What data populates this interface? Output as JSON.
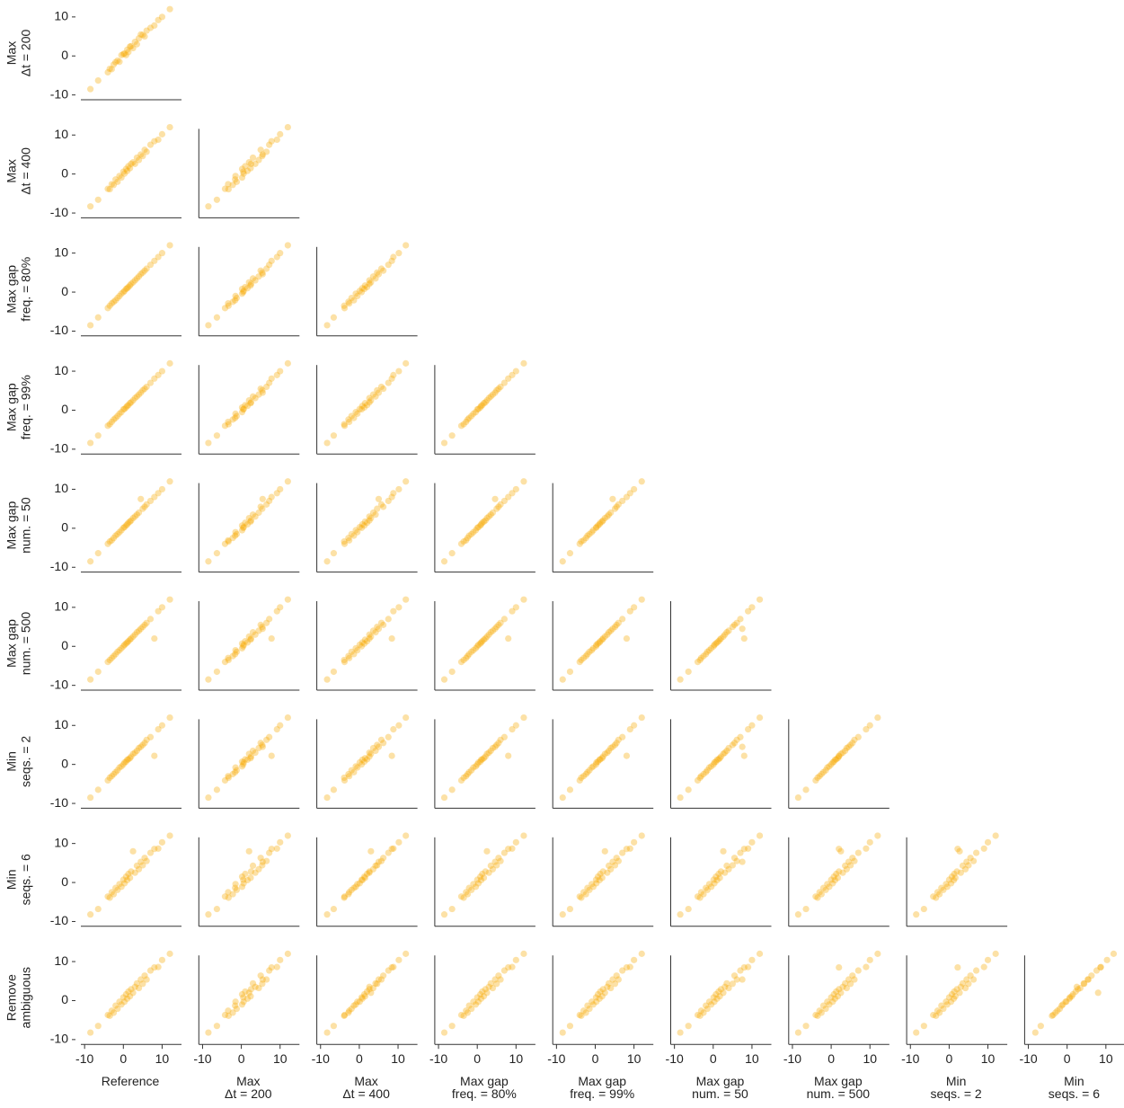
{
  "chart_data": {
    "type": "scatter-matrix",
    "xlim": [
      -10.5,
      15
    ],
    "ylim": [
      -11,
      12.5
    ],
    "xticks": [
      -10,
      0,
      10
    ],
    "yticks": [
      -10,
      0,
      10
    ],
    "color": "#f5a800",
    "variables": [
      {
        "name": [
          "Reference"
        ],
        "values": [
          -8.5,
          -6.5,
          -4,
          -3.5,
          -3,
          -2.5,
          -2,
          -1.5,
          -1,
          -0.5,
          0,
          0.3,
          0.7,
          1,
          1.3,
          1.7,
          2,
          2.5,
          3,
          3.5,
          4,
          4.5,
          5,
          5.5,
          6,
          7,
          8,
          9,
          10,
          12
        ]
      },
      {
        "name": [
          "Max",
          "Δt = 200"
        ],
        "values": [
          -8.5,
          -6.3,
          -4.2,
          -3.3,
          -3.4,
          -2.2,
          -1.6,
          -1.2,
          -1.5,
          0.2,
          0.5,
          0.6,
          0.2,
          1.6,
          1.0,
          2.4,
          2.5,
          2.0,
          3.6,
          3.0,
          4.5,
          5.5,
          5.4,
          5.0,
          6.5,
          7.2,
          7.8,
          9.2,
          10,
          12
        ]
      },
      {
        "name": [
          "Max",
          "Δt = 400"
        ],
        "values": [
          -8.3,
          -6.6,
          -3.8,
          -3.9,
          -2.6,
          -2.8,
          -1.4,
          -2.0,
          -0.5,
          -0.9,
          0.6,
          0.1,
          1.3,
          0.8,
          2.0,
          1.5,
          2.6,
          3.0,
          2.6,
          4.2,
          3.6,
          5.0,
          4.6,
          6.2,
          5.7,
          7.5,
          8.4,
          8.8,
          10.2,
          12
        ]
      },
      {
        "name": [
          "Max gap",
          "freq. = 80%"
        ],
        "values": [
          -8.5,
          -6.5,
          -4.1,
          -3.5,
          -2.9,
          -2.5,
          -2.1,
          -1.5,
          -1,
          -0.4,
          0,
          0.3,
          0.8,
          1,
          1.3,
          1.7,
          2.1,
          2.5,
          3,
          3.5,
          4,
          4.6,
          5,
          5.5,
          6,
          7,
          8,
          9,
          10,
          12
        ]
      },
      {
        "name": [
          "Max gap",
          "freq. = 99%"
        ],
        "values": [
          -8.4,
          -6.5,
          -4,
          -3.6,
          -3,
          -2.4,
          -2,
          -1.5,
          -0.9,
          -0.5,
          0.2,
          0.3,
          0.7,
          1.1,
          1.3,
          1.8,
          2,
          2.5,
          3.1,
          3.5,
          4,
          4.5,
          5.1,
          5.5,
          6,
          7,
          8.1,
          9,
          10,
          12
        ]
      },
      {
        "name": [
          "Max gap",
          "num. = 50"
        ],
        "values": [
          -8.5,
          -6.4,
          -4,
          -3.4,
          -3.1,
          -2.5,
          -1.9,
          -1.5,
          -1,
          -0.5,
          0.1,
          0.3,
          0.7,
          1,
          1.4,
          1.7,
          2,
          2.6,
          3,
          3.5,
          4,
          7.5,
          5,
          5.5,
          6.1,
          7,
          8,
          9,
          10,
          12
        ]
      },
      {
        "name": [
          "Max gap",
          "num. = 500"
        ],
        "values": [
          -8.5,
          -6.5,
          -4,
          -3.5,
          -3,
          -2.5,
          -2,
          -1.4,
          -1,
          -0.5,
          0,
          0.4,
          0.7,
          1,
          1.3,
          1.7,
          2,
          2.5,
          3,
          3.6,
          4,
          4.5,
          5,
          5.5,
          6,
          7,
          2,
          9,
          10,
          12
        ]
      },
      {
        "name": [
          "Min",
          "seqs. = 2"
        ],
        "values": [
          -8.5,
          -6.5,
          -4.1,
          -3.4,
          -3,
          -2.5,
          -2,
          -1.5,
          -0.8,
          -0.5,
          0,
          0.5,
          0.7,
          1.2,
          1.3,
          1.6,
          2,
          2.7,
          3,
          3.5,
          4.2,
          4.5,
          5,
          5.5,
          6.3,
          7,
          2.2,
          9,
          10,
          12
        ]
      },
      {
        "name": [
          "Min",
          "seqs. = 6"
        ],
        "values": [
          -8.2,
          -6.8,
          -3.6,
          -3.9,
          -2.5,
          -3.0,
          -1.4,
          -1.9,
          -0.4,
          -1.1,
          0.7,
          -0.2,
          1.5,
          0.6,
          2.2,
          1.2,
          2.8,
          8,
          2.5,
          4.3,
          3.4,
          5.3,
          4.4,
          6.3,
          5.5,
          7.6,
          8.6,
          8.7,
          10.3,
          12
        ]
      },
      {
        "name": [
          "Remove",
          "ambiguous"
        ],
        "values": [
          -8.2,
          -6.5,
          -3.7,
          -3.9,
          -2.6,
          -3.1,
          -1.3,
          -2.1,
          -0.3,
          -1.0,
          0.8,
          -0.3,
          1.6,
          0.5,
          2.3,
          1.1,
          2.9,
          2.0,
          3.5,
          4.4,
          3.2,
          5.4,
          4.3,
          6.4,
          5.4,
          7.7,
          8.5,
          8.6,
          10.4,
          12
        ]
      }
    ]
  }
}
